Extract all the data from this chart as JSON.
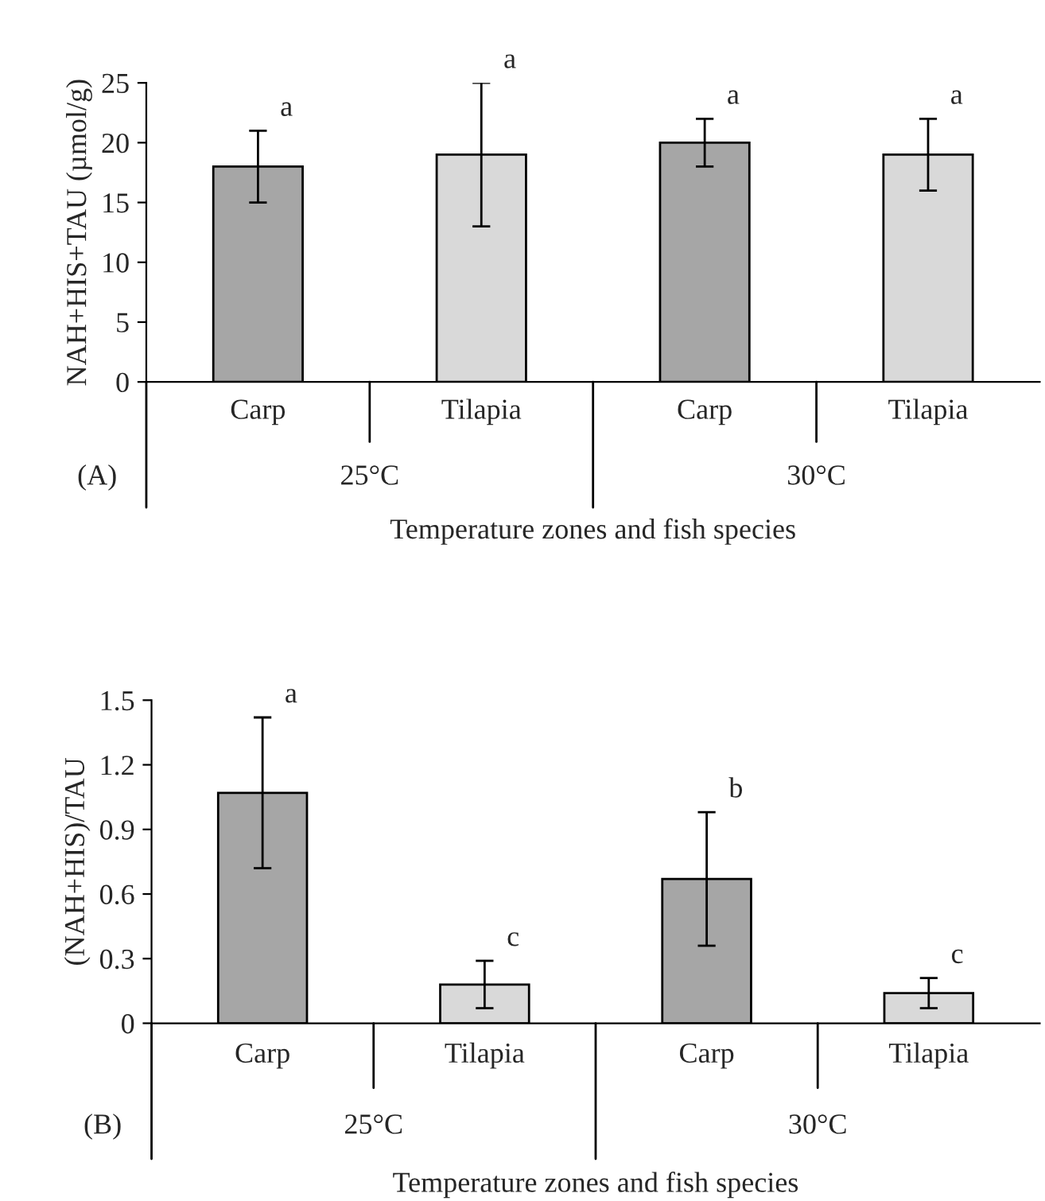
{
  "chart_data": [
    {
      "type": "bar",
      "ylabel": "NAH+HIS+TAU (µmol/g)",
      "xlabel": "Temperature zones and fish species",
      "categories": [
        "Carp",
        "Tilapia",
        "Carp",
        "Tilapia"
      ],
      "values": [
        18,
        19,
        20,
        19
      ],
      "errors": [
        3,
        6,
        2,
        3
      ],
      "colors": [
        "#a6a6a6",
        "#d9d9d9",
        "#a6a6a6",
        "#d9d9d9"
      ],
      "ylim": [
        0,
        25
      ],
      "yticks": [
        0,
        5,
        10,
        15,
        20,
        25
      ],
      "grid": false,
      "annotations": [
        "(A)",
        "25°C",
        "30°C",
        "a",
        "a",
        "a",
        "a"
      ]
    },
    {
      "type": "bar",
      "ylabel": "(NAH+HIS)/TAU",
      "xlabel": "Temperature zones and fish species",
      "categories": [
        "Carp",
        "Tilapia",
        "Carp",
        "Tilapia"
      ],
      "values": [
        1.07,
        0.18,
        0.67,
        0.14
      ],
      "errors": [
        0.35,
        0.11,
        0.31,
        0.07
      ],
      "colors": [
        "#a6a6a6",
        "#d9d9d9",
        "#a6a6a6",
        "#d9d9d9"
      ],
      "ylim": [
        0,
        1.5
      ],
      "yticks": [
        0,
        0.3,
        0.6,
        0.9,
        1.2,
        1.5
      ],
      "grid": false,
      "annotations": [
        "(B)",
        "25°C",
        "30°C",
        "a",
        "c",
        "b",
        "c"
      ]
    }
  ]
}
